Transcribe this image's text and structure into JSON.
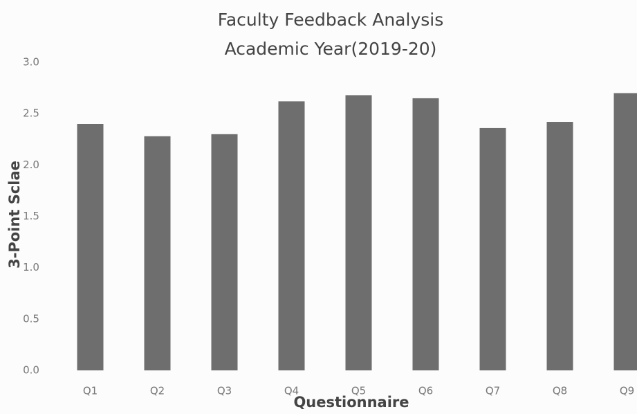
{
  "chart_data": {
    "type": "bar",
    "title": "Faculty Feedback Analysis",
    "subtitle": "Academic Year(2019-20)",
    "y_label": "3-Point Sclae",
    "x_label": "Questionnaire",
    "categories": [
      "Q1",
      "Q2",
      "Q3",
      "Q4",
      "Q5",
      "Q6",
      "Q7",
      "Q8",
      "Q9"
    ],
    "values": [
      2.4,
      2.28,
      2.3,
      2.62,
      2.68,
      2.65,
      2.36,
      2.42,
      2.7
    ],
    "color": "#666666",
    "ylim": [
      0,
      3
    ],
    "yticks": [
      {
        "value": 0,
        "label": "0.0"
      },
      0.5,
      {
        "value": 1,
        "label": "1.0"
      },
      1.5,
      {
        "value": 2,
        "label": "2.0"
      },
      2.5,
      {
        "value": 3,
        "label": "3.0"
      }
    ],
    "grid": false
  }
}
